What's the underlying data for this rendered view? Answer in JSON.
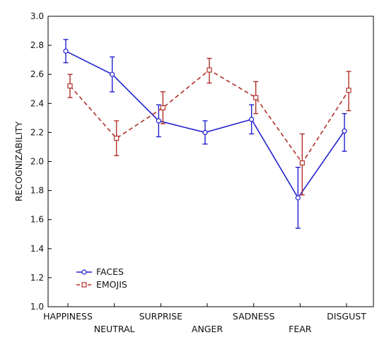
{
  "chart_data": {
    "type": "line",
    "title": "",
    "xlabel": "",
    "ylabel": "RECOGNIZABILITY",
    "ylim": [
      1.0,
      3.0
    ],
    "yticks": [
      "1.0",
      "1.2",
      "1.4",
      "1.6",
      "1.8",
      "2.0",
      "2.2",
      "2.4",
      "2.6",
      "2.8",
      "3.0"
    ],
    "grid": false,
    "legend_position": "bottom-left",
    "categories": [
      "HAPPINESS",
      "NEUTRAL",
      "SURPRISE",
      "ANGER",
      "SADNESS",
      "FEAR",
      "DISGUST"
    ],
    "series": [
      {
        "name": "FACES",
        "color": "#2020d0",
        "line_style": "solid",
        "marker": "circle",
        "values": [
          2.76,
          2.6,
          2.28,
          2.2,
          2.29,
          1.75,
          2.21
        ],
        "err_low": [
          2.68,
          2.48,
          2.17,
          2.12,
          2.19,
          1.54,
          2.07
        ],
        "err_high": [
          2.84,
          2.72,
          2.39,
          2.28,
          2.39,
          1.96,
          2.33
        ]
      },
      {
        "name": "EMOJIS",
        "color": "#b03028",
        "line_style": "dashed",
        "marker": "square",
        "values": [
          2.52,
          2.16,
          2.37,
          2.63,
          2.44,
          1.99,
          2.49
        ],
        "err_low": [
          2.44,
          2.04,
          2.26,
          2.54,
          2.33,
          1.77,
          2.35
        ],
        "err_high": [
          2.6,
          2.28,
          2.48,
          2.71,
          2.55,
          2.19,
          2.62
        ]
      }
    ]
  }
}
